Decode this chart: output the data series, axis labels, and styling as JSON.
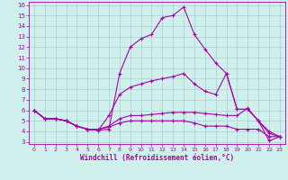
{
  "xlabel": "Windchill (Refroidissement éolien,°C)",
  "xlim": [
    -0.5,
    23.5
  ],
  "ylim": [
    2.8,
    16.3
  ],
  "yticks": [
    3,
    4,
    5,
    6,
    7,
    8,
    9,
    10,
    11,
    12,
    13,
    14,
    15,
    16
  ],
  "xticks": [
    0,
    1,
    2,
    3,
    4,
    5,
    6,
    7,
    8,
    9,
    10,
    11,
    12,
    13,
    14,
    15,
    16,
    17,
    18,
    19,
    20,
    21,
    22,
    23
  ],
  "line_color": "#aa00aa",
  "bg_color": "#cff0ec",
  "grid_color": "#aacfcc",
  "lines": [
    {
      "x": [
        0,
        1,
        2,
        3,
        4,
        5,
        6,
        7,
        8,
        9,
        10,
        11,
        12,
        13,
        14,
        15,
        16,
        17,
        18,
        19,
        20,
        21,
        22,
        23
      ],
      "y": [
        6.0,
        5.2,
        5.2,
        5.0,
        4.5,
        4.2,
        4.1,
        4.2,
        9.5,
        12.0,
        12.8,
        13.2,
        14.8,
        15.0,
        15.8,
        13.2,
        11.8,
        10.5,
        9.5,
        6.1,
        6.1,
        5.0,
        3.1,
        3.5
      ]
    },
    {
      "x": [
        0,
        1,
        2,
        3,
        4,
        5,
        6,
        7,
        8,
        9,
        10,
        11,
        12,
        13,
        14,
        15,
        16,
        17,
        18,
        19,
        20,
        21,
        22,
        23
      ],
      "y": [
        6.0,
        5.2,
        5.2,
        5.0,
        4.5,
        4.2,
        4.1,
        5.5,
        7.5,
        8.2,
        8.5,
        8.8,
        9.0,
        9.2,
        9.5,
        8.5,
        7.8,
        7.5,
        9.5,
        6.1,
        6.1,
        5.0,
        3.8,
        3.5
      ]
    },
    {
      "x": [
        0,
        1,
        2,
        3,
        4,
        5,
        6,
        7,
        8,
        9,
        10,
        11,
        12,
        13,
        14,
        15,
        16,
        17,
        18,
        19,
        20,
        21,
        22,
        23
      ],
      "y": [
        6.0,
        5.2,
        5.2,
        5.0,
        4.5,
        4.2,
        4.2,
        4.5,
        5.2,
        5.5,
        5.5,
        5.6,
        5.7,
        5.8,
        5.8,
        5.8,
        5.7,
        5.6,
        5.5,
        5.5,
        6.2,
        5.0,
        4.0,
        3.5
      ]
    },
    {
      "x": [
        0,
        1,
        2,
        3,
        4,
        5,
        6,
        7,
        8,
        9,
        10,
        11,
        12,
        13,
        14,
        15,
        16,
        17,
        18,
        19,
        20,
        21,
        22,
        23
      ],
      "y": [
        6.0,
        5.2,
        5.2,
        5.0,
        4.5,
        4.2,
        4.2,
        4.4,
        4.8,
        5.0,
        5.0,
        5.0,
        5.0,
        5.0,
        5.0,
        4.8,
        4.5,
        4.5,
        4.5,
        4.2,
        4.2,
        4.2,
        3.5,
        3.5
      ]
    }
  ]
}
